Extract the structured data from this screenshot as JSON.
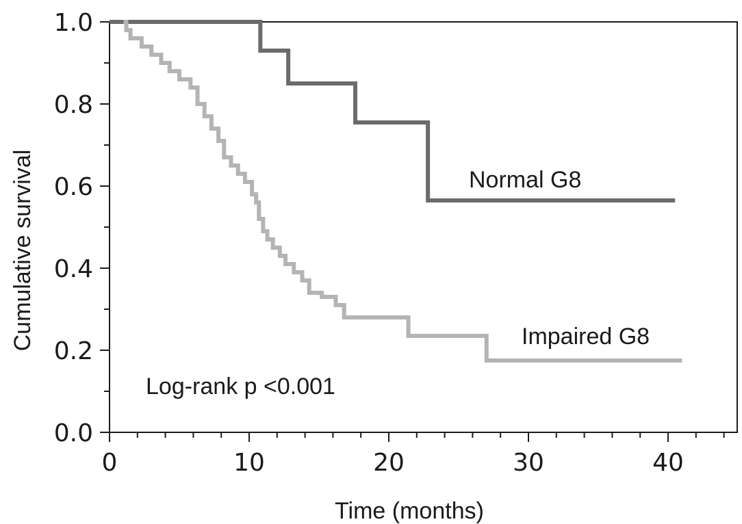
{
  "chart_data": {
    "type": "line",
    "subtype": "kaplan-meier step curve",
    "title": "",
    "xlabel": "Time (months)",
    "ylabel": "Cumulative survival",
    "xlim": [
      0,
      45
    ],
    "ylim": [
      0,
      1
    ],
    "x_ticks": [
      0,
      10,
      20,
      30,
      40
    ],
    "x_tick_labels": [
      "0",
      "10",
      "20",
      "30",
      "40"
    ],
    "x_minor_step": 2,
    "y_ticks": [
      0,
      0.2,
      0.4,
      0.6,
      0.8,
      1.0
    ],
    "y_tick_labels": [
      "0.0",
      "0.2",
      "0.4",
      "0.6",
      "0.8",
      "1.0"
    ],
    "y_minor_step": 0.1,
    "grid": false,
    "series": [
      {
        "name": "Normal G8",
        "color": "#6b6b6b",
        "x": [
          0,
          10.8,
          12.8,
          17.6,
          22.8,
          40.5
        ],
        "y": [
          1.0,
          0.93,
          0.85,
          0.755,
          0.565,
          0.565
        ]
      },
      {
        "name": "Impaired G8",
        "color": "#b4b4b4",
        "x": [
          1.0,
          1.2,
          1.5,
          2.3,
          3.0,
          3.7,
          4.3,
          5.0,
          5.8,
          6.3,
          6.8,
          7.3,
          7.8,
          8.2,
          8.7,
          9.2,
          9.7,
          10.2,
          10.5,
          10.7,
          11.0,
          11.3,
          11.7,
          12.2,
          12.6,
          13.2,
          13.8,
          14.3,
          15.2,
          16.2,
          16.8,
          21.4,
          27.0,
          41.0
        ],
        "y": [
          1.0,
          0.98,
          0.96,
          0.94,
          0.92,
          0.9,
          0.88,
          0.86,
          0.84,
          0.8,
          0.77,
          0.74,
          0.71,
          0.67,
          0.65,
          0.63,
          0.61,
          0.58,
          0.56,
          0.52,
          0.49,
          0.47,
          0.45,
          0.43,
          0.41,
          0.39,
          0.37,
          0.34,
          0.33,
          0.31,
          0.28,
          0.235,
          0.175,
          0.175
        ]
      }
    ],
    "annotations": {
      "pvalue": "Log-rank p <0.001"
    }
  }
}
